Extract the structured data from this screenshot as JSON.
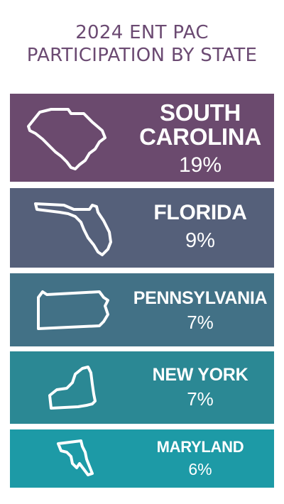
{
  "title_line1": "2024 ENT PAC",
  "title_line2": "PARTICIPATION BY STATE",
  "colors": {
    "title": "#6b4a72",
    "south_carolina": "#6b4a6e",
    "florida": "#55607a",
    "pennsylvania": "#427186",
    "new_york": "#2b8894",
    "maryland": "#1d9aa6"
  },
  "chart_data": {
    "type": "table",
    "title": "2024 ENT PAC PARTICIPATION BY STATE",
    "rows": [
      {
        "state_line1": "SOUTH",
        "state_line2": "CAROLINA",
        "value": 19,
        "label": "19%",
        "icon": "south-carolina-outline-icon"
      },
      {
        "state_line1": "FLORIDA",
        "state_line2": "",
        "value": 9,
        "label": "9%",
        "icon": "florida-outline-icon"
      },
      {
        "state_line1": "PENNSYLVANIA",
        "state_line2": "",
        "value": 7,
        "label": "7%",
        "icon": "pennsylvania-outline-icon"
      },
      {
        "state_line1": "NEW YORK",
        "state_line2": "",
        "value": 7,
        "label": "7%",
        "icon": "new-york-outline-icon"
      },
      {
        "state_line1": "MARYLAND",
        "state_line2": "",
        "value": 6,
        "label": "6%",
        "icon": "maryland-outline-icon"
      }
    ]
  }
}
